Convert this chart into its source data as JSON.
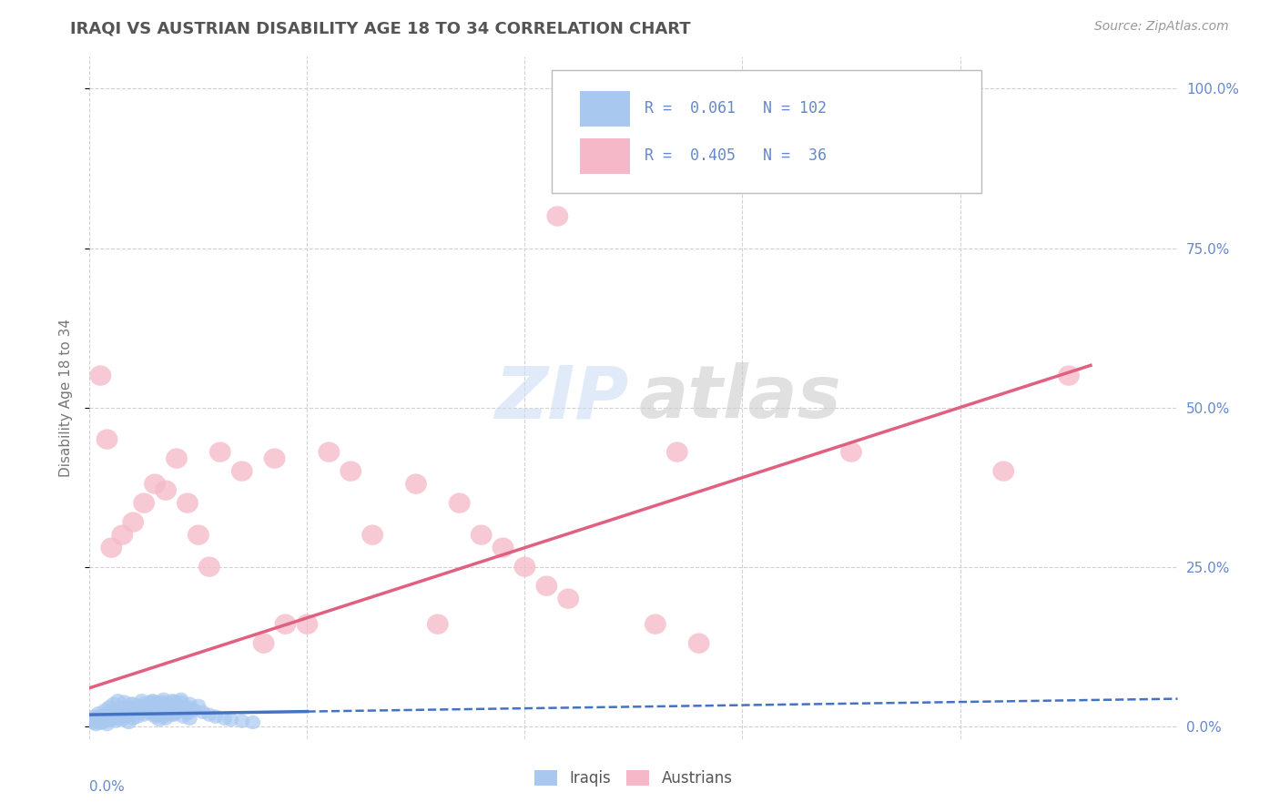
{
  "title": "IRAQI VS AUSTRIAN DISABILITY AGE 18 TO 34 CORRELATION CHART",
  "source_text": "Source: ZipAtlas.com",
  "ylabel": "Disability Age 18 to 34",
  "right_yticks": [
    0.0,
    0.25,
    0.5,
    0.75,
    1.0
  ],
  "right_yticklabels": [
    "0.0%",
    "25.0%",
    "50.0%",
    "75.0%",
    "100.0%"
  ],
  "xlim": [
    0.0,
    0.5
  ],
  "ylim": [
    -0.02,
    1.05
  ],
  "iraqi_R": 0.061,
  "iraqi_N": 102,
  "austrian_R": 0.405,
  "austrian_N": 36,
  "iraqi_color": "#a8c8f0",
  "austrian_color": "#f5b8c8",
  "iraqi_line_color": "#4472c4",
  "austrian_line_color": "#e06080",
  "watermark_color_zip": "#ccddf5",
  "watermark_color_atlas": "#cccccc",
  "grid_color": "#cccccc",
  "background_color": "#ffffff",
  "title_color": "#555555",
  "axis_label_color": "#6688cc",
  "iraqi_points": [
    [
      0.005,
      0.005
    ],
    [
      0.008,
      0.003
    ],
    [
      0.012,
      0.008
    ],
    [
      0.015,
      0.01
    ],
    [
      0.018,
      0.006
    ],
    [
      0.02,
      0.012
    ],
    [
      0.022,
      0.015
    ],
    [
      0.025,
      0.018
    ],
    [
      0.028,
      0.02
    ],
    [
      0.03,
      0.015
    ],
    [
      0.032,
      0.01
    ],
    [
      0.035,
      0.012
    ],
    [
      0.038,
      0.018
    ],
    [
      0.04,
      0.022
    ],
    [
      0.042,
      0.025
    ],
    [
      0.045,
      0.02
    ],
    [
      0.003,
      0.008
    ],
    [
      0.006,
      0.012
    ],
    [
      0.01,
      0.018
    ],
    [
      0.014,
      0.02
    ],
    [
      0.017,
      0.025
    ],
    [
      0.021,
      0.03
    ],
    [
      0.024,
      0.028
    ],
    [
      0.027,
      0.022
    ],
    [
      0.031,
      0.018
    ],
    [
      0.034,
      0.015
    ],
    [
      0.037,
      0.02
    ],
    [
      0.041,
      0.025
    ],
    [
      0.002,
      0.015
    ],
    [
      0.004,
      0.02
    ],
    [
      0.007,
      0.025
    ],
    [
      0.009,
      0.03
    ],
    [
      0.011,
      0.035
    ],
    [
      0.013,
      0.04
    ],
    [
      0.016,
      0.038
    ],
    [
      0.019,
      0.035
    ],
    [
      0.023,
      0.032
    ],
    [
      0.026,
      0.028
    ],
    [
      0.029,
      0.025
    ],
    [
      0.033,
      0.022
    ],
    [
      0.036,
      0.02
    ],
    [
      0.039,
      0.018
    ],
    [
      0.043,
      0.015
    ],
    [
      0.046,
      0.012
    ],
    [
      0.001,
      0.01
    ],
    [
      0.004,
      0.015
    ],
    [
      0.008,
      0.02
    ],
    [
      0.012,
      0.025
    ],
    [
      0.016,
      0.03
    ],
    [
      0.02,
      0.035
    ],
    [
      0.024,
      0.04
    ],
    [
      0.028,
      0.038
    ],
    [
      0.032,
      0.035
    ],
    [
      0.036,
      0.032
    ],
    [
      0.04,
      0.03
    ],
    [
      0.044,
      0.028
    ],
    [
      0.006,
      0.008
    ],
    [
      0.01,
      0.012
    ],
    [
      0.014,
      0.018
    ],
    [
      0.018,
      0.022
    ],
    [
      0.022,
      0.028
    ],
    [
      0.026,
      0.032
    ],
    [
      0.03,
      0.038
    ],
    [
      0.034,
      0.042
    ],
    [
      0.038,
      0.04
    ],
    [
      0.042,
      0.038
    ],
    [
      0.046,
      0.035
    ],
    [
      0.05,
      0.032
    ],
    [
      0.002,
      0.005
    ],
    [
      0.005,
      0.01
    ],
    [
      0.009,
      0.015
    ],
    [
      0.013,
      0.02
    ],
    [
      0.017,
      0.025
    ],
    [
      0.021,
      0.03
    ],
    [
      0.025,
      0.035
    ],
    [
      0.029,
      0.04
    ],
    [
      0.033,
      0.038
    ],
    [
      0.037,
      0.035
    ],
    [
      0.041,
      0.032
    ],
    [
      0.045,
      0.03
    ],
    [
      0.003,
      0.003
    ],
    [
      0.006,
      0.006
    ],
    [
      0.009,
      0.009
    ],
    [
      0.012,
      0.012
    ],
    [
      0.015,
      0.015
    ],
    [
      0.018,
      0.018
    ],
    [
      0.021,
      0.021
    ],
    [
      0.024,
      0.024
    ],
    [
      0.027,
      0.027
    ],
    [
      0.03,
      0.03
    ],
    [
      0.033,
      0.033
    ],
    [
      0.036,
      0.036
    ],
    [
      0.039,
      0.039
    ],
    [
      0.042,
      0.042
    ],
    [
      0.048,
      0.025
    ],
    [
      0.052,
      0.022
    ],
    [
      0.055,
      0.018
    ],
    [
      0.058,
      0.015
    ],
    [
      0.062,
      0.012
    ],
    [
      0.065,
      0.01
    ],
    [
      0.07,
      0.008
    ],
    [
      0.075,
      0.006
    ]
  ],
  "austrian_points": [
    [
      0.005,
      0.55
    ],
    [
      0.008,
      0.45
    ],
    [
      0.01,
      0.28
    ],
    [
      0.015,
      0.3
    ],
    [
      0.02,
      0.32
    ],
    [
      0.025,
      0.35
    ],
    [
      0.03,
      0.38
    ],
    [
      0.04,
      0.42
    ],
    [
      0.045,
      0.35
    ],
    [
      0.05,
      0.3
    ],
    [
      0.055,
      0.25
    ],
    [
      0.06,
      0.43
    ],
    [
      0.07,
      0.4
    ],
    [
      0.08,
      0.13
    ],
    [
      0.085,
      0.42
    ],
    [
      0.09,
      0.16
    ],
    [
      0.1,
      0.16
    ],
    [
      0.11,
      0.43
    ],
    [
      0.12,
      0.4
    ],
    [
      0.13,
      0.3
    ],
    [
      0.15,
      0.38
    ],
    [
      0.16,
      0.16
    ],
    [
      0.17,
      0.35
    ],
    [
      0.18,
      0.3
    ],
    [
      0.19,
      0.28
    ],
    [
      0.2,
      0.25
    ],
    [
      0.21,
      0.22
    ],
    [
      0.215,
      0.8
    ],
    [
      0.22,
      0.2
    ],
    [
      0.26,
      0.16
    ],
    [
      0.27,
      0.43
    ],
    [
      0.28,
      0.13
    ],
    [
      0.35,
      0.43
    ],
    [
      0.42,
      0.4
    ],
    [
      0.45,
      0.55
    ],
    [
      0.035,
      0.37
    ]
  ],
  "iraqi_line_slope": 0.05,
  "iraqi_line_intercept": 0.018,
  "austrian_line_slope": 1.1,
  "austrian_line_intercept": 0.06
}
